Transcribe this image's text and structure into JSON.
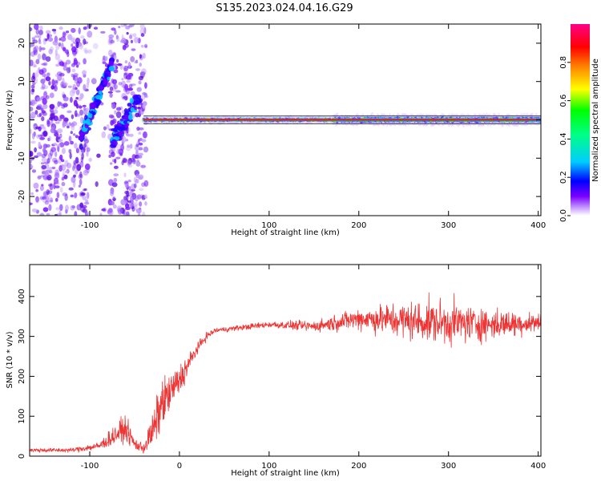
{
  "title": "S135.2023.024.04.16.G29",
  "chart_data": [
    {
      "type": "heatmap",
      "xlabel": "Height of straight line (km)",
      "ylabel": "Frequency (Hz)",
      "xlim": [
        -167,
        403
      ],
      "ylim": [
        -25,
        25
      ],
      "xticks": [
        -100,
        0,
        100,
        200,
        300,
        400
      ],
      "yticks": [
        -20,
        -10,
        0,
        10,
        20
      ],
      "grid": false,
      "colorbar": {
        "label": "Normalized spectral amplitude",
        "range": [
          0.0,
          1.0
        ],
        "ticks": [
          0.0,
          0.2,
          0.4,
          0.6,
          0.8
        ],
        "colormap": [
          "#ffffff",
          "#7b00ff",
          "#0000ff",
          "#00ccff",
          "#00ff00",
          "#ffff00",
          "#ff8000",
          "#ff0000",
          "#ff00aa"
        ]
      },
      "features": {
        "scattered_region_x": [
          -167,
          -40
        ],
        "steady_tone_frequency_hz": 0,
        "steady_tone_x": [
          -40,
          403
        ],
        "steady_tone_color": "#ff0000"
      }
    },
    {
      "type": "line",
      "xlabel": "Height of straight line (km)",
      "ylabel": "SNR (10 * v/v)",
      "xlim": [
        -167,
        403
      ],
      "ylim": [
        0,
        480
      ],
      "xticks": [
        -100,
        0,
        100,
        200,
        300,
        400
      ],
      "yticks": [
        0,
        100,
        200,
        300,
        400
      ],
      "grid": false,
      "series": [
        {
          "color": "#ee3333",
          "x": [
            -167,
            -120,
            -90,
            -70,
            -60,
            -50,
            -40,
            -30,
            -20,
            -10,
            0,
            10,
            20,
            30,
            40,
            60,
            100,
            150,
            200,
            250,
            300,
            350,
            403
          ],
          "y": [
            15,
            15,
            25,
            55,
            70,
            30,
            20,
            60,
            130,
            160,
            190,
            230,
            270,
            300,
            315,
            320,
            330,
            325,
            345,
            340,
            335,
            330,
            335
          ],
          "noise_amplitude": [
            8,
            8,
            15,
            40,
            45,
            25,
            20,
            70,
            90,
            70,
            60,
            40,
            20,
            15,
            10,
            10,
            12,
            20,
            40,
            70,
            80,
            55,
            35
          ]
        }
      ]
    }
  ]
}
